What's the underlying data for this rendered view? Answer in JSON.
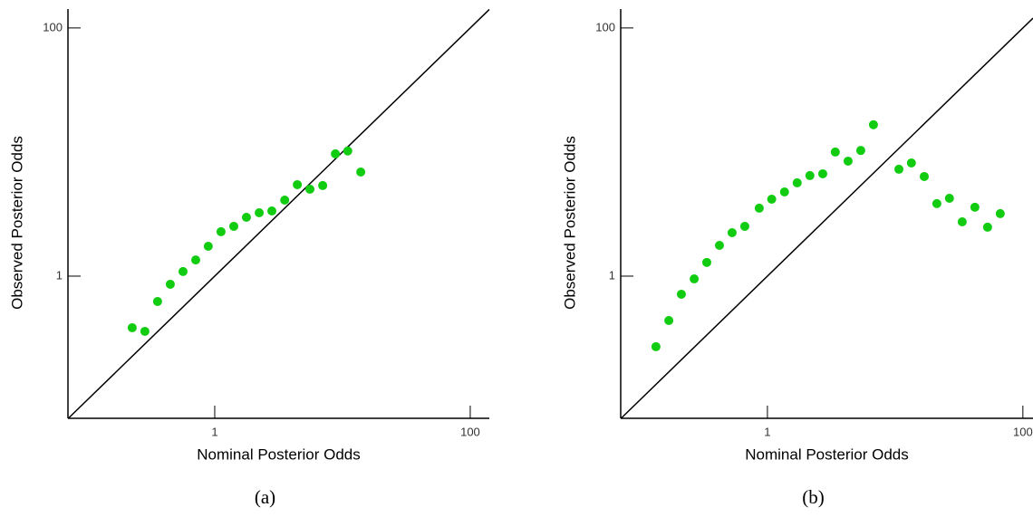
{
  "chart_data": [
    {
      "type": "scatter",
      "caption": "(a)",
      "x_label": "Nominal Posterior Odds",
      "y_label": "Observed Posterior Odds",
      "log_scale": true,
      "color": "#11cc11",
      "diagonal": true,
      "xlim": [
        0.071,
        141
      ],
      "ylim": [
        0.0715,
        142
      ],
      "xticks": [
        1,
        100
      ],
      "yticks": [
        1,
        100
      ],
      "x": [
        0.226,
        0.284,
        0.357,
        0.449,
        0.565,
        0.71,
        0.89,
        1.12,
        1.41,
        1.77,
        2.23,
        2.8,
        3.53,
        4.43,
        5.56,
        7.0,
        8.8,
        11.0,
        13.9
      ],
      "values": [
        0.384,
        0.359,
        0.625,
        0.86,
        1.09,
        1.35,
        1.74,
        2.28,
        2.52,
        2.98,
        3.24,
        3.35,
        4.1,
        5.46,
        5.02,
        5.37,
        9.67,
        10.2,
        6.9
      ]
    },
    {
      "type": "scatter",
      "caption": "(b)",
      "x_label": "Nominal Posterior Odds",
      "y_label": "Observed Posterior Odds",
      "log_scale": true,
      "color": "#11cc11",
      "diagonal": true,
      "xlim": [
        0.071,
        120
      ],
      "ylim": [
        0.0715,
        142
      ],
      "xticks": [
        1,
        100
      ],
      "yticks": [
        1,
        100
      ],
      "x": [
        0.134,
        0.169,
        0.212,
        0.267,
        0.335,
        0.421,
        0.529,
        0.665,
        0.863,
        1.08,
        1.36,
        1.71,
        2.15,
        2.71,
        3.4,
        4.28,
        5.38,
        6.76,
        10.7,
        13.4,
        16.9,
        21.2,
        26.6,
        33.5,
        42.1,
        52.9,
        66.5
      ],
      "values": [
        0.27,
        0.439,
        0.715,
        0.95,
        1.29,
        1.77,
        2.24,
        2.52,
        3.53,
        4.17,
        4.77,
        5.65,
        6.46,
        6.68,
        10.0,
        8.45,
        10.3,
        16.6,
        7.27,
        8.17,
        6.35,
        3.84,
        4.24,
        2.74,
        3.59,
        2.48,
        3.19
      ]
    }
  ]
}
